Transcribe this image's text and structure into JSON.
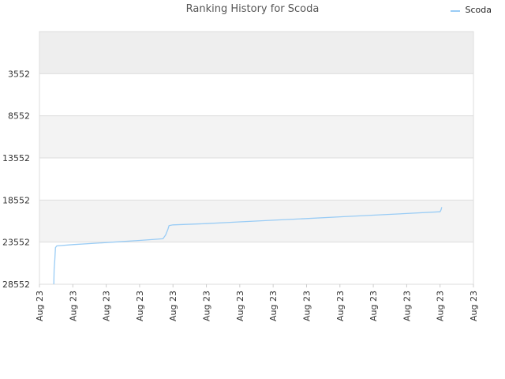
{
  "chart_data": {
    "type": "line",
    "title": "Ranking History for Scoda",
    "xlabel": "",
    "ylabel": "",
    "x_tick_labels": [
      "Aug 23",
      "Aug 23",
      "Aug 23",
      "Aug 23",
      "Aug 23",
      "Aug 23",
      "Aug 23",
      "Aug 23",
      "Aug 23",
      "Aug 23",
      "Aug 23",
      "Aug 23",
      "Aug 23",
      "Aug 23"
    ],
    "y_tick_labels": [
      "3552",
      "8552",
      "13552",
      "18552",
      "23552",
      "28552"
    ],
    "y_ticks": [
      3552,
      8552,
      13552,
      18552,
      23552,
      28552
    ],
    "ylim": [
      -1448,
      28552
    ],
    "y_inverted": true,
    "xlim": [
      0,
      13
    ],
    "grid": true,
    "band_colors": [
      "#eeeeee",
      "#ffffff",
      "#f3f3f3",
      "#ffffff",
      "#f3f3f3",
      "#ffffff"
    ],
    "legend_position": "top-right",
    "series": [
      {
        "name": "Scoda",
        "color": "#99ccf5",
        "points": [
          [
            0.43,
            28552
          ],
          [
            0.44,
            26800
          ],
          [
            0.46,
            25600
          ],
          [
            0.48,
            24200
          ],
          [
            0.52,
            24000
          ],
          [
            1.0,
            23850
          ],
          [
            2.0,
            23600
          ],
          [
            3.0,
            23350
          ],
          [
            3.7,
            23150
          ],
          [
            3.78,
            22700
          ],
          [
            3.85,
            22000
          ],
          [
            3.88,
            21600
          ],
          [
            4.0,
            21500
          ],
          [
            5.0,
            21350
          ],
          [
            6.0,
            21150
          ],
          [
            7.0,
            20950
          ],
          [
            8.0,
            20750
          ],
          [
            9.0,
            20550
          ],
          [
            10.0,
            20350
          ],
          [
            11.0,
            20150
          ],
          [
            12.0,
            19950
          ],
          [
            12.03,
            19700
          ],
          [
            12.05,
            19400
          ]
        ]
      }
    ]
  }
}
